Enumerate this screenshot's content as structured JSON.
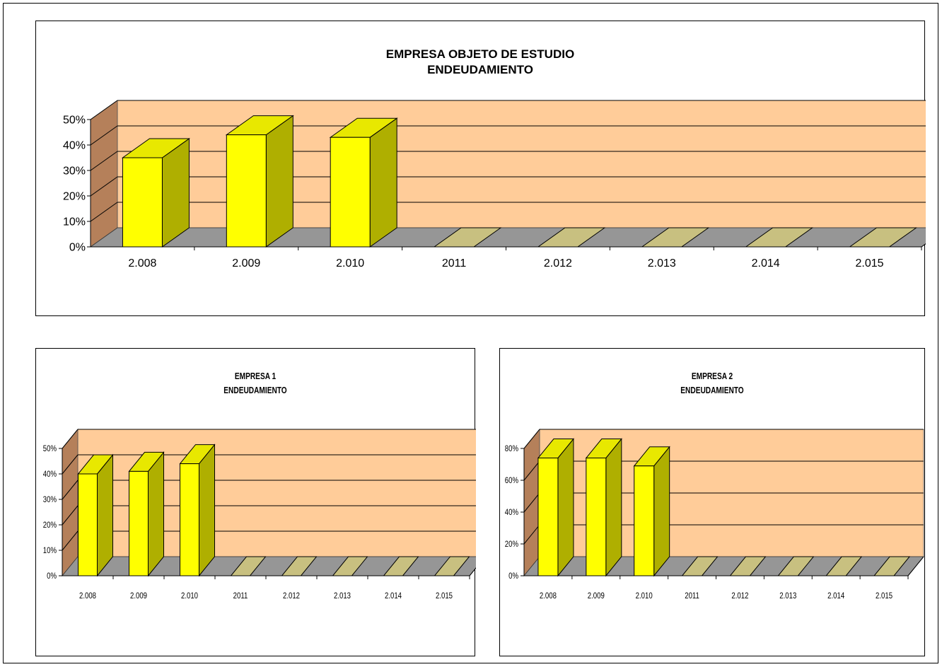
{
  "chart_data": [
    {
      "id": "main",
      "type": "bar",
      "title": "EMPRESA OBJETO DE ESTUDIO",
      "subtitle": "ENDEUDAMIENTO",
      "categories": [
        "2.008",
        "2.009",
        "2.010",
        "2011",
        "2.012",
        "2.013",
        "2.014",
        "2.015"
      ],
      "values": [
        0.35,
        0.44,
        0.43,
        0,
        0,
        0,
        0,
        0
      ],
      "ylim": [
        0,
        0.5
      ],
      "yticks": [
        "0%",
        "10%",
        "20%",
        "30%",
        "40%",
        "50%"
      ],
      "style": "3d",
      "grid": true
    },
    {
      "id": "e1",
      "type": "bar",
      "title": "EMPRESA 1",
      "subtitle": "ENDEUDAMIENTO",
      "categories": [
        "2.008",
        "2.009",
        "2.010",
        "2011",
        "2.012",
        "2.013",
        "2.014",
        "2.015"
      ],
      "values": [
        0.4,
        0.41,
        0.44,
        0,
        0,
        0,
        0,
        0
      ],
      "ylim": [
        0,
        0.5
      ],
      "yticks": [
        "0%",
        "10%",
        "20%",
        "30%",
        "40%",
        "50%"
      ],
      "style": "3d",
      "grid": true
    },
    {
      "id": "e2",
      "type": "bar",
      "title": "EMPRESA 2",
      "subtitle": "ENDEUDAMIENTO",
      "categories": [
        "2.008",
        "2.009",
        "2.010",
        "2011",
        "2.012",
        "2.013",
        "2.014",
        "2.015"
      ],
      "values": [
        0.74,
        0.74,
        0.69,
        0,
        0,
        0,
        0,
        0
      ],
      "ylim": [
        0,
        0.8
      ],
      "yticks": [
        "0%",
        "20%",
        "40%",
        "60%",
        "80%"
      ],
      "style": "3d",
      "grid": true
    }
  ],
  "colors": {
    "wall": "#FFCC99",
    "side_wall": "#B5805A",
    "floor": "#969696",
    "bar_front": "#FFFF00",
    "bar_side": "#AFAF00",
    "bar_top": "#E8E800",
    "empty_top": "#C8C080"
  }
}
